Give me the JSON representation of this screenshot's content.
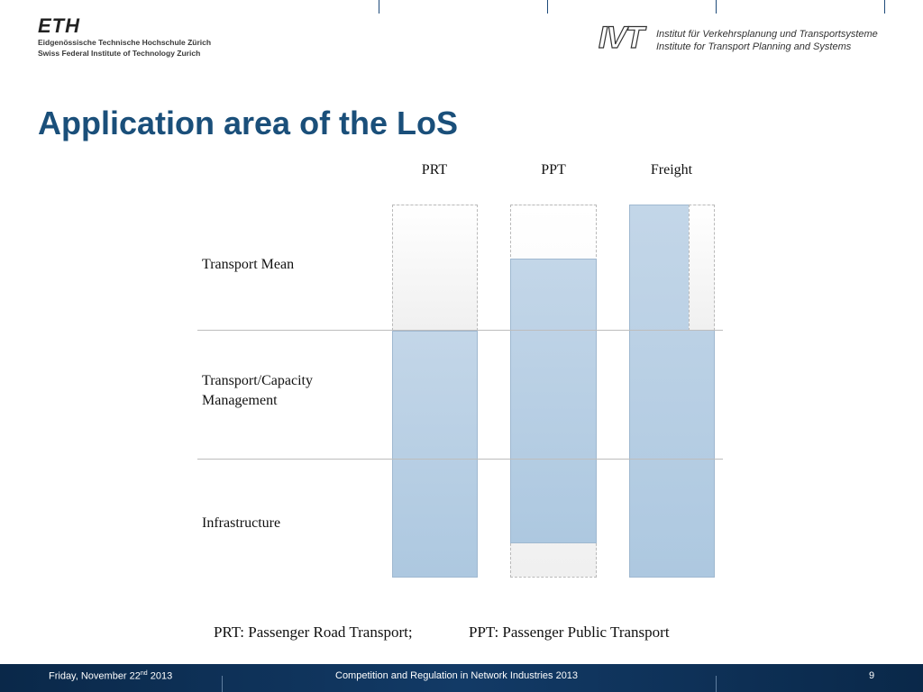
{
  "header": {
    "eth_logo": "ETH",
    "eth_name_de": "Eidgenössische Technische Hochschule Zürich",
    "eth_name_en": "Swiss Federal Institute of Technology Zurich",
    "ivt_logo": "IVT",
    "ivt_name_de": "Institut für Verkehrsplanung und Transportsysteme",
    "ivt_name_en": "Institute for Transport Planning and Systems"
  },
  "title": "Application area of the LoS",
  "diagram": {
    "columns": [
      "PRT",
      "PPT",
      "Freight"
    ],
    "rows": [
      {
        "label_lines": [
          "Transport Mean"
        ]
      },
      {
        "label_lines": [
          "Transport/Capacity",
          "Management"
        ]
      },
      {
        "label_lines": [
          "Infrastructure"
        ]
      }
    ]
  },
  "footnote": {
    "prt": "PRT: Passenger Road Transport;",
    "ppt": "PPT: Passenger Public Transport"
  },
  "footer": {
    "date_prefix": "Friday, November 22",
    "date_suffix": "nd",
    "date_year": "2013",
    "course": "Competition and Regulation in Network Industries 2013",
    "page": "9"
  },
  "colors": {
    "title": "#1a4f7a",
    "applied_fill": "#b5cde3",
    "footer_bg": "#0a2849"
  }
}
